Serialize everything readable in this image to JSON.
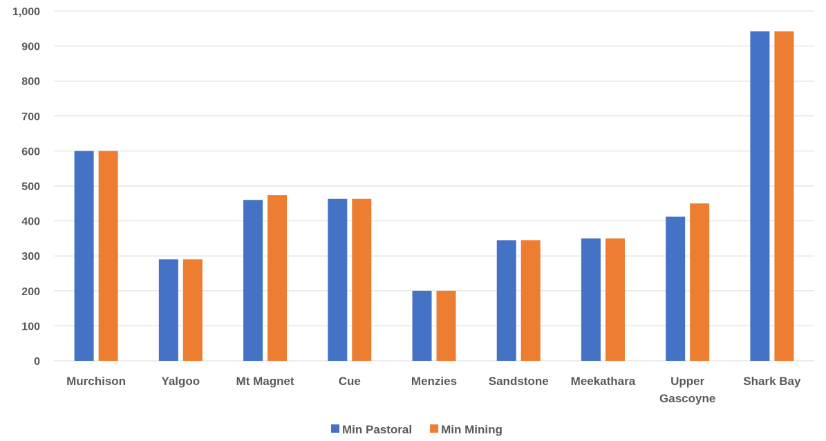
{
  "chart_data": {
    "type": "bar",
    "categories": [
      "Murchison",
      "Yalgoo",
      "Mt Magnet",
      "Cue",
      "Menzies",
      "Sandstone",
      "Meekathara",
      "Upper Gascoyne",
      "Shark Bay"
    ],
    "category_lines": [
      [
        "Murchison"
      ],
      [
        "Yalgoo"
      ],
      [
        "Mt Magnet"
      ],
      [
        "Cue"
      ],
      [
        "Menzies"
      ],
      [
        "Sandstone"
      ],
      [
        "Meekathara"
      ],
      [
        "Upper",
        "Gascoyne"
      ],
      [
        "Shark Bay"
      ]
    ],
    "series": [
      {
        "name": "Min Pastoral",
        "color": "#4472C4",
        "values": [
          600,
          290,
          460,
          463,
          200,
          345,
          350,
          412,
          942
        ]
      },
      {
        "name": "Min Mining",
        "color": "#ED7D31",
        "values": [
          600,
          290,
          474,
          463,
          200,
          345,
          350,
          450,
          942
        ]
      }
    ],
    "title": "",
    "xlabel": "",
    "ylabel": "",
    "ylim": [
      0,
      1000
    ],
    "yticks": [
      0,
      100,
      200,
      300,
      400,
      500,
      600,
      700,
      800,
      900,
      1000
    ],
    "ytick_labels": [
      "0",
      "100",
      "200",
      "300",
      "400",
      "500",
      "600",
      "700",
      "800",
      "900",
      "1,000"
    ],
    "grid": true,
    "legend_position": "bottom",
    "gridline_color": "#D9D9D9"
  }
}
